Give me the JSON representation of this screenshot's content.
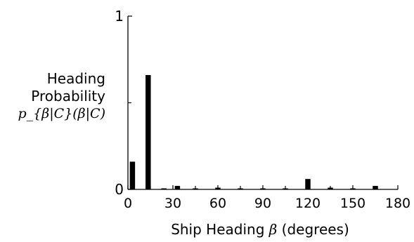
{
  "chart_data": {
    "type": "bar",
    "title": "",
    "ylabel": {
      "line1": "Heading",
      "line2": "Probability",
      "line3": "p_{β|C}(β|C)"
    },
    "xlabel": {
      "text_before": "Ship Heading ",
      "symbol": "β",
      "text_after": " (degrees)"
    },
    "xlim": [
      0,
      180
    ],
    "ylim": [
      0,
      1
    ],
    "x_ticks": [
      0,
      30,
      60,
      90,
      120,
      150,
      180
    ],
    "x_minor_ticks": [
      15,
      45,
      75,
      105,
      135,
      165
    ],
    "y_ticks": [
      0,
      1
    ],
    "y_minor_ticks": [
      0.5
    ],
    "bar_width_deg": 3.5,
    "grid": false,
    "bars": [
      {
        "x": 3,
        "y": 0.16
      },
      {
        "x": 13.5,
        "y": 0.66
      },
      {
        "x": 24,
        "y": 0.0
      },
      {
        "x": 33,
        "y": 0.02
      },
      {
        "x": 45,
        "y": 0.0
      },
      {
        "x": 60,
        "y": 0.01
      },
      {
        "x": 75,
        "y": 0.0
      },
      {
        "x": 90,
        "y": 0.0
      },
      {
        "x": 105,
        "y": 0.0
      },
      {
        "x": 120,
        "y": 0.06
      },
      {
        "x": 135,
        "y": 0.01
      },
      {
        "x": 150,
        "y": 0.005
      },
      {
        "x": 165,
        "y": 0.02
      }
    ]
  },
  "colors": {
    "bar": "#000000",
    "axis": "#000000",
    "background": "#ffffff"
  }
}
